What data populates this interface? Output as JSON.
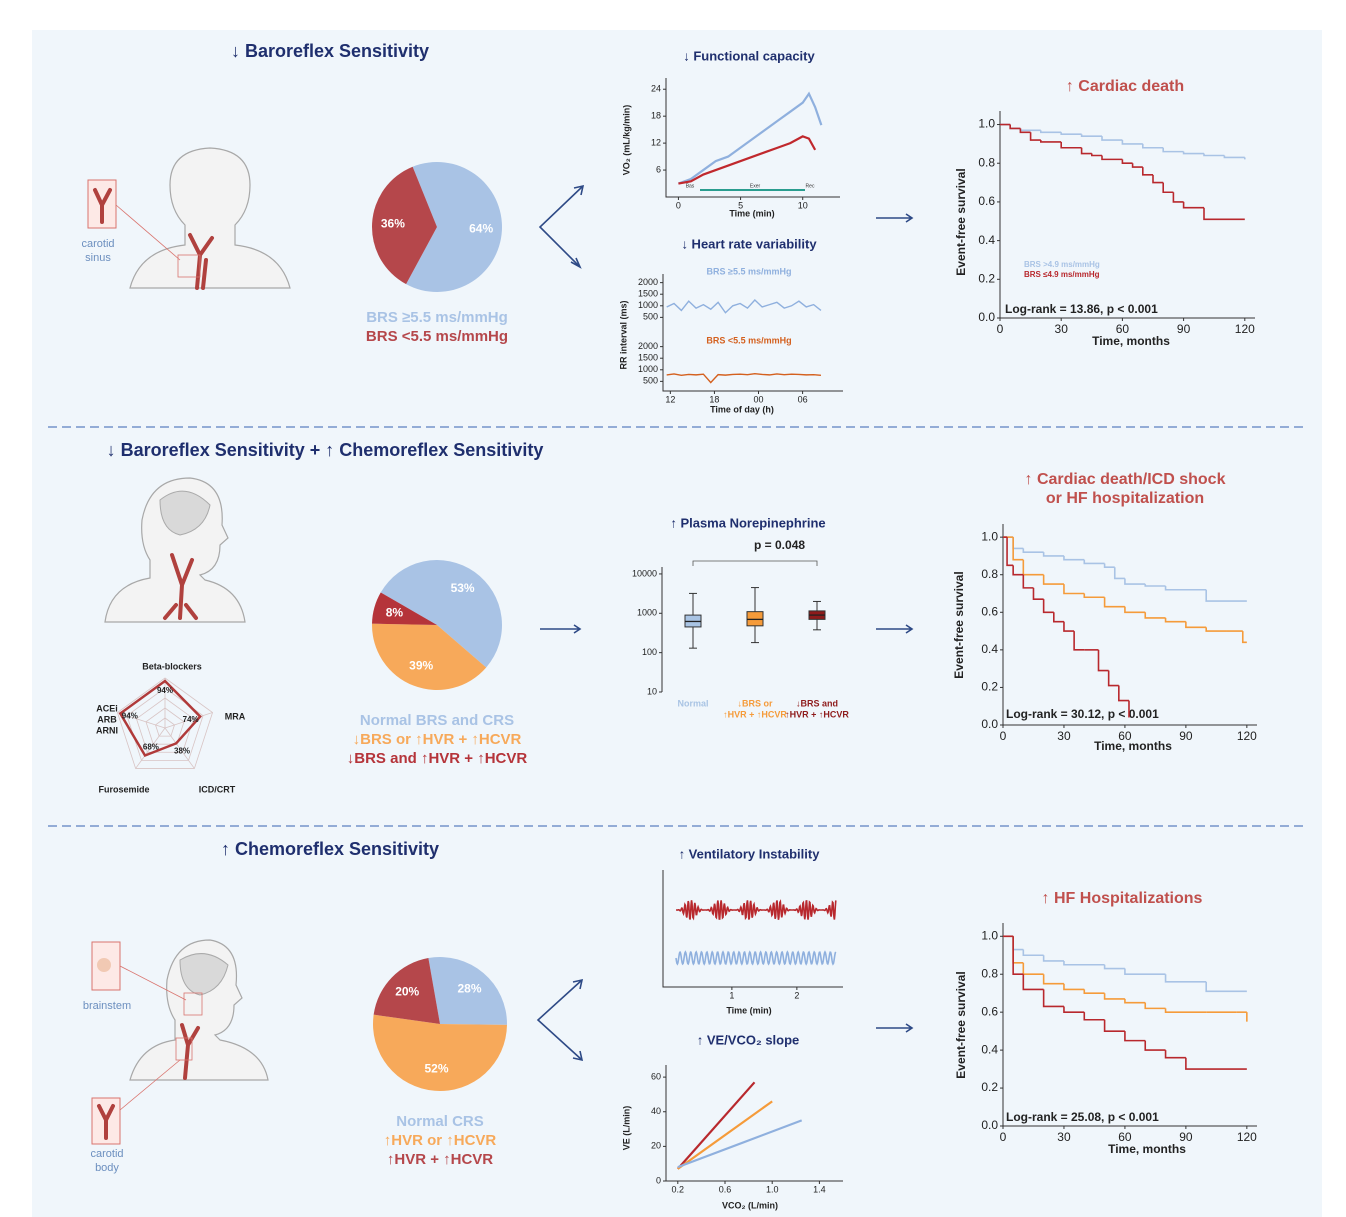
{
  "sections": [
    {
      "title": "↓ Baroreflex Sensitivity",
      "labels": [
        [
          "carotid",
          "sinus"
        ]
      ]
    },
    {
      "title": "↓ Baroreflex Sensitivity + ↑ Chemoreflex Sensitivity"
    },
    {
      "title": "↑ Chemoreflex Sensitivity",
      "labels": [
        [
          "brainstem"
        ],
        [
          "carotid",
          "body"
        ]
      ]
    }
  ],
  "chart_data": [
    {
      "type": "pie",
      "categories": [
        "BRS ≥5.5 ms/mmHg",
        "BRS <5.5 ms/mmHg"
      ],
      "values": [
        64,
        36
      ],
      "value_labels": [
        "64%",
        "36%"
      ],
      "colors": [
        "#a9c3e5",
        "#b5474b"
      ]
    },
    {
      "type": "line",
      "title": "↓ Functional capacity",
      "ylabel": "VO₂ (mL/kg/min)",
      "xlabel": "Time (min)",
      "phases": [
        "Bas",
        "Exer",
        "Rec"
      ],
      "xlim": [
        -1,
        13
      ],
      "ylim": [
        0,
        26.5
      ],
      "xticks": [
        0,
        5,
        10
      ],
      "yticks": [
        6,
        12,
        18,
        24
      ],
      "series": [
        {
          "color": "#8fb0de",
          "x": [
            0,
            1,
            2,
            3,
            4,
            5,
            6,
            7,
            8,
            9,
            10,
            10.5,
            11,
            11.5
          ],
          "values": [
            3,
            4,
            6,
            8,
            9,
            11,
            13,
            15,
            17,
            19,
            21,
            23,
            20,
            16
          ]
        },
        {
          "color": "#c0282d",
          "x": [
            0,
            1,
            2,
            3,
            4,
            5,
            6,
            7,
            8,
            9,
            10,
            10.5,
            11
          ],
          "values": [
            3,
            3.5,
            5,
            6,
            7,
            8,
            9,
            10,
            11,
            12,
            13.5,
            13,
            10.5
          ]
        }
      ]
    },
    {
      "type": "panel-line",
      "title": "↓ Heart rate variability",
      "ylabel": "RR interval (ms)",
      "xlabel": "Time of day (h)",
      "xlim": [
        11,
        35.5
      ],
      "ylim": [
        300,
        2200
      ],
      "xticks": [
        12,
        18,
        {
          "value": 24,
          "label": "00"
        },
        {
          "value": 30,
          "label": "06"
        }
      ],
      "yticks": [
        500,
        1000,
        1500,
        2000
      ],
      "series": [
        {
          "name": "BRS ≥5.5 ms/mmHg",
          "color": "#8fb0de",
          "x": [
            11.5,
            12.5,
            13.5,
            14.5,
            15.5,
            16.5,
            17.5,
            18.5,
            19.5,
            20.5,
            21.5,
            22.5,
            23.5,
            24.5,
            25.5,
            26.5,
            27.5,
            28.5,
            29.5,
            30.5,
            31.5,
            32.5
          ],
          "values": [
            950,
            1100,
            800,
            1200,
            900,
            1050,
            850,
            1150,
            700,
            1000,
            1100,
            900,
            1250,
            950,
            1050,
            1150,
            900,
            1000,
            1200,
            950,
            1050,
            800
          ]
        },
        {
          "name": "BRS <5.5 ms/mmHg",
          "color": "#d4601e",
          "x": [
            11.5,
            12.5,
            13.5,
            14.5,
            15.5,
            16.5,
            17.5,
            18.5,
            19.5,
            20.5,
            21.5,
            22.5,
            23.5,
            24.5,
            25.5,
            26.5,
            27.5,
            28.5,
            29.5,
            30.5,
            31.5,
            32.5
          ],
          "values": [
            780,
            820,
            760,
            800,
            780,
            810,
            450,
            790,
            770,
            800,
            810,
            790,
            830,
            800,
            780,
            820,
            790,
            810,
            800,
            780,
            790,
            760
          ]
        }
      ]
    },
    {
      "type": "step",
      "title": "↑ Cardiac death",
      "ylabel": "Event-free survival",
      "xlabel": "Time, months",
      "annotation": "Log-rank = 13.86, p < 0.001",
      "xlim": [
        0,
        125
      ],
      "ylim": [
        0,
        1.07
      ],
      "xticks": [
        0,
        30,
        60,
        90,
        120
      ],
      "yticks": [
        {
          "value": 0,
          "label": "0.0"
        },
        0.2,
        0.4,
        0.6,
        0.8,
        {
          "value": 1,
          "label": "1.0"
        }
      ],
      "series": [
        {
          "name": "BRS >4.9 ms/mmHg",
          "color": "#a9c3e5",
          "x": [
            0,
            5,
            10,
            20,
            30,
            40,
            50,
            60,
            70,
            80,
            90,
            100,
            110,
            120
          ],
          "values": [
            1,
            0.98,
            0.97,
            0.96,
            0.95,
            0.94,
            0.92,
            0.9,
            0.88,
            0.86,
            0.85,
            0.84,
            0.83,
            0.82
          ]
        },
        {
          "name": "BRS ≤4.9 ms/mmHg",
          "color": "#b8282d",
          "x": [
            0,
            5,
            10,
            15,
            20,
            30,
            40,
            45,
            50,
            60,
            65,
            70,
            75,
            80,
            85,
            90,
            100,
            120
          ],
          "values": [
            1,
            0.98,
            0.96,
            0.92,
            0.91,
            0.88,
            0.85,
            0.84,
            0.82,
            0.8,
            0.78,
            0.74,
            0.7,
            0.65,
            0.6,
            0.57,
            0.51,
            0.51
          ]
        }
      ]
    },
    {
      "type": "pie",
      "categories": [
        "Normal BRS and CRS",
        "↓BRS or ↑HVR + ↑HCVR",
        "↓BRS and ↑HVR + ↑HCVR"
      ],
      "values": [
        53,
        39,
        8
      ],
      "value_labels": [
        "53%",
        "39%",
        "8%"
      ],
      "colors": [
        "#a9c3e5",
        "#f7a95a",
        "#b5343a"
      ]
    },
    {
      "type": "radar",
      "categories": [
        "Beta-blockers",
        "MRA",
        "ICD/CRT",
        "Furosemide",
        [
          "ACEi",
          "ARB",
          "ARNI"
        ]
      ],
      "values": [
        94,
        74,
        38,
        68,
        94
      ],
      "value_labels": [
        "94%",
        "74%",
        "38%",
        "68%",
        "94%"
      ],
      "rlim": [
        0,
        100
      ],
      "color": "#b03a3a",
      "grid": true
    },
    {
      "type": "box",
      "title": "↑ Plasma Norepinephrine",
      "annotation": "p = 0.048",
      "log": true,
      "ylim": [
        10,
        15000
      ],
      "yticks": [
        10,
        100,
        1000,
        10000
      ],
      "categories": [
        [
          "Normal"
        ],
        [
          "↓BRS or",
          "↑HVR + ↑HCVR"
        ],
        [
          "↓BRS and",
          "↑HVR + ↑HCVR"
        ]
      ],
      "boxes": [
        {
          "color": "#a9c4e4",
          "min": 130,
          "q1": 450,
          "median": 620,
          "q3": 900,
          "max": 3200
        },
        {
          "color": "#f59b3a",
          "min": 180,
          "q1": 480,
          "median": 700,
          "q3": 1100,
          "max": 4500
        },
        {
          "color": "#8e1b1b",
          "min": 380,
          "q1": 700,
          "median": 900,
          "q3": 1150,
          "max": 2000
        }
      ]
    },
    {
      "type": "step",
      "title": [
        "↑ Cardiac death/ICD shock",
        "or HF hospitalization"
      ],
      "ylabel": "Event-free survival",
      "xlabel": "Time, months",
      "annotation": "Log-rank = 30.12, p < 0.001",
      "xlim": [
        0,
        125
      ],
      "ylim": [
        0,
        1.07
      ],
      "xticks": [
        0,
        30,
        60,
        90,
        120
      ],
      "yticks": [
        {
          "value": 0,
          "label": "0.0"
        },
        0.2,
        0.4,
        0.6,
        0.8,
        {
          "value": 1,
          "label": "1.0"
        }
      ],
      "series": [
        {
          "color": "#a9c3e5",
          "x": [
            0,
            5,
            10,
            20,
            30,
            40,
            50,
            55,
            60,
            70,
            80,
            100,
            120
          ],
          "values": [
            1,
            0.94,
            0.92,
            0.9,
            0.88,
            0.86,
            0.84,
            0.78,
            0.75,
            0.74,
            0.72,
            0.66,
            0.66
          ]
        },
        {
          "color": "#f59b3a",
          "x": [
            0,
            5,
            10,
            20,
            30,
            40,
            50,
            60,
            70,
            80,
            90,
            100,
            110,
            118,
            120
          ],
          "values": [
            1,
            0.88,
            0.8,
            0.75,
            0.7,
            0.68,
            0.63,
            0.6,
            0.57,
            0.55,
            0.52,
            0.5,
            0.5,
            0.44,
            0.44
          ]
        },
        {
          "color": "#b8282d",
          "x": [
            0,
            2,
            5,
            10,
            15,
            20,
            25,
            30,
            35,
            40,
            47,
            52,
            57,
            62
          ],
          "values": [
            1,
            0.85,
            0.8,
            0.73,
            0.67,
            0.6,
            0.55,
            0.5,
            0.4,
            0.4,
            0.29,
            0.21,
            0.13,
            0.04
          ]
        }
      ]
    },
    {
      "type": "pie",
      "categories": [
        "Normal CRS",
        "↑HVR or ↑HCVR",
        "↑HVR + ↑HCVR"
      ],
      "values": [
        28,
        52,
        20
      ],
      "value_labels": [
        "28%",
        "52%",
        "20%"
      ],
      "colors": [
        "#a9c3e5",
        "#f7a95a",
        "#b5474b"
      ]
    },
    {
      "type": "waveform",
      "title": "↑ Ventilatory Instability",
      "xlabel": "Time (min)",
      "xlim": [
        -0.06,
        2.71
      ],
      "xticks": [
        1,
        2
      ]
    },
    {
      "type": "line",
      "title": "↑ VE/VCO₂ slope",
      "ylabel": "VE (L/min)",
      "xlabel": "VCO₂ (L/min)",
      "xlim": [
        0.1,
        1.6
      ],
      "ylim": [
        0,
        67
      ],
      "xticks": [
        0.2,
        0.6,
        {
          "value": 1,
          "label": "1.0"
        },
        1.4
      ],
      "yticks": [
        0,
        20,
        40,
        60
      ],
      "series": [
        {
          "color": "#b8282d",
          "x": [
            0.2,
            0.85
          ],
          "values": [
            7,
            57
          ]
        },
        {
          "color": "#f59b3a",
          "x": [
            0.2,
            1.0
          ],
          "values": [
            7,
            46
          ]
        },
        {
          "color": "#8fb0de",
          "x": [
            0.2,
            1.25
          ],
          "values": [
            8,
            35
          ]
        }
      ]
    },
    {
      "type": "step",
      "title": "↑ HF Hospitalizations",
      "ylabel": "Event-free survival",
      "xlabel": "Time, months",
      "annotation": "Log-rank = 25.08, p < 0.001",
      "xlim": [
        0,
        125
      ],
      "ylim": [
        0,
        1.07
      ],
      "xticks": [
        0,
        30,
        60,
        90,
        120
      ],
      "yticks": [
        {
          "value": 0,
          "label": "0.0"
        },
        0.2,
        0.4,
        0.6,
        0.8,
        {
          "value": 1,
          "label": "1.0"
        }
      ],
      "series": [
        {
          "color": "#a9c3e5",
          "x": [
            0,
            5,
            10,
            20,
            30,
            50,
            60,
            80,
            100,
            120
          ],
          "values": [
            1,
            0.93,
            0.9,
            0.87,
            0.85,
            0.83,
            0.8,
            0.76,
            0.71,
            0.71
          ]
        },
        {
          "color": "#f59b3a",
          "x": [
            0,
            5,
            10,
            20,
            30,
            40,
            50,
            60,
            70,
            80,
            100,
            115,
            120
          ],
          "values": [
            1,
            0.86,
            0.8,
            0.75,
            0.72,
            0.7,
            0.67,
            0.65,
            0.62,
            0.6,
            0.6,
            0.6,
            0.55
          ]
        },
        {
          "color": "#b8282d",
          "x": [
            0,
            5,
            10,
            20,
            30,
            40,
            50,
            60,
            70,
            80,
            90,
            120
          ],
          "values": [
            1,
            0.8,
            0.72,
            0.63,
            0.6,
            0.56,
            0.5,
            0.45,
            0.4,
            0.36,
            0.3,
            0.3
          ]
        }
      ]
    }
  ]
}
